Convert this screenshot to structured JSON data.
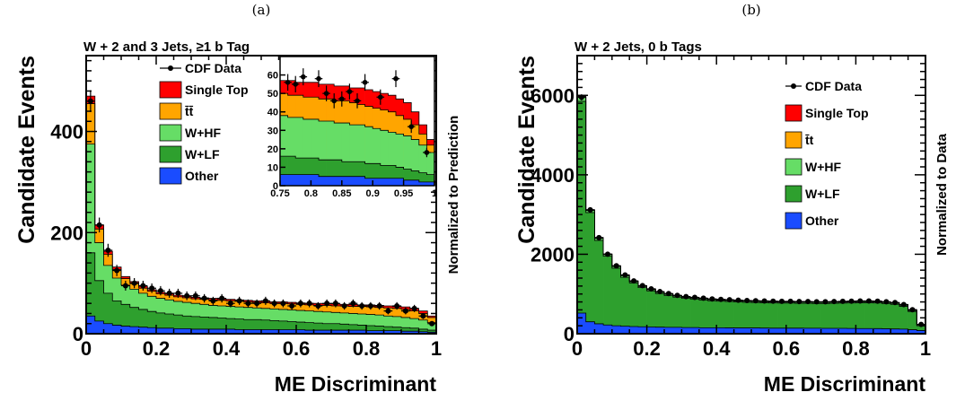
{
  "chart_data": [
    {
      "type": "bar",
      "panel_label": "(a)",
      "title": "W + 2 and 3 Jets, ≥1 b Tag",
      "xlabel": "ME Discriminant",
      "ylabel": "Candidate Events",
      "side_label": "Normalized to Prediction",
      "xlim": [
        0,
        1
      ],
      "ylim": [
        0,
        550
      ],
      "x_ticks": [
        "0",
        "0.2",
        "0.4",
        "0.6",
        "0.8",
        "1"
      ],
      "y_ticks": [
        "0",
        "200",
        "400"
      ],
      "y_tick_values": [
        0,
        200,
        400
      ],
      "legend_position": "top-center",
      "colors": {
        "Single Top": "#ff0000",
        "tt": "#ffa500",
        "W+HF": "#66dd66",
        "W+LF": "#2ea02e",
        "Other": "#1a4cff"
      },
      "legend": [
        {
          "name": "CDF Data",
          "kind": "data"
        },
        {
          "name": "Single Top",
          "kind": "box",
          "color": "#ff0000"
        },
        {
          "name": "t̄t̄",
          "kind": "box",
          "color": "#ffa500"
        },
        {
          "name": "W+HF",
          "kind": "box",
          "color": "#66dd66"
        },
        {
          "name": "W+LF",
          "kind": "box",
          "color": "#2ea02e"
        },
        {
          "name": "Other",
          "kind": "box",
          "color": "#1a4cff"
        }
      ],
      "bin_width": 0.025,
      "stack_cumulative": {
        "Other": [
          35,
          25,
          20,
          17,
          15,
          14,
          13,
          12,
          11,
          11,
          10,
          10,
          9,
          9,
          9,
          9,
          9,
          8,
          8,
          8,
          8,
          8,
          8,
          8,
          8,
          7,
          7,
          7,
          7,
          7,
          7,
          7,
          6,
          6,
          6,
          6,
          5,
          5,
          4,
          3
        ],
        "W+LF": [
          160,
          105,
          80,
          65,
          58,
          52,
          48,
          44,
          41,
          39,
          37,
          35,
          34,
          33,
          32,
          31,
          30,
          29,
          28,
          28,
          27,
          26,
          25,
          24,
          23,
          22,
          21,
          20,
          20,
          19,
          18,
          17,
          16,
          15,
          14,
          13,
          12,
          11,
          9,
          7
        ],
        "W+HF": [
          375,
          180,
          135,
          110,
          96,
          88,
          80,
          74,
          70,
          67,
          64,
          62,
          60,
          58,
          56,
          55,
          54,
          53,
          52,
          51,
          50,
          49,
          48,
          47,
          46,
          45,
          44,
          43,
          42,
          41,
          40,
          39,
          38,
          37,
          35,
          34,
          32,
          30,
          27,
          22
        ],
        "tt": [
          455,
          207,
          157,
          127,
          109,
          99,
          90,
          84,
          79,
          76,
          73,
          71,
          69,
          68,
          67,
          66,
          65,
          64,
          63,
          62,
          61,
          60,
          60,
          59,
          58,
          57,
          56,
          56,
          55,
          55,
          54,
          54,
          53,
          52,
          51,
          50,
          48,
          45,
          40,
          32
        ],
        "Single Top": [
          470,
          215,
          163,
          132,
          113,
          103,
          94,
          87,
          82,
          79,
          76,
          74,
          72,
          71,
          70,
          69,
          68,
          67,
          66,
          65,
          64,
          63,
          63,
          62,
          61,
          60,
          60,
          59,
          59,
          58,
          58,
          57,
          57,
          56,
          55,
          54,
          53,
          50,
          45,
          35
        ]
      },
      "data_points": {
        "x": [
          0.0125,
          0.0375,
          0.0625,
          0.0875,
          0.1125,
          0.1375,
          0.1625,
          0.1875,
          0.2125,
          0.2375,
          0.2625,
          0.2875,
          0.3125,
          0.3375,
          0.3625,
          0.3875,
          0.4125,
          0.4375,
          0.4625,
          0.4875,
          0.5125,
          0.5375,
          0.5625,
          0.5875,
          0.6125,
          0.6375,
          0.6625,
          0.6875,
          0.7125,
          0.7375,
          0.7625,
          0.7875,
          0.8125,
          0.8375,
          0.8625,
          0.8875,
          0.9125,
          0.9375,
          0.9625,
          0.9875
        ],
        "y": [
          460,
          215,
          165,
          125,
          95,
          100,
          95,
          90,
          85,
          80,
          80,
          75,
          75,
          70,
          65,
          70,
          60,
          65,
          60,
          60,
          65,
          60,
          60,
          55,
          60,
          60,
          55,
          60,
          60,
          55,
          60,
          55,
          55,
          55,
          45,
          55,
          45,
          50,
          35,
          20
        ]
      },
      "inset": {
        "xlim": [
          0.75,
          1
        ],
        "ylim": [
          0,
          70
        ],
        "x_ticks": [
          "0.75",
          "0.8",
          "0.85",
          "0.9",
          "0.95",
          "1"
        ],
        "y_ticks": [
          "0",
          "10",
          "20",
          "30",
          "40",
          "50",
          "60"
        ],
        "y_tick_values": [
          0,
          10,
          20,
          30,
          40,
          50,
          60
        ],
        "bin_width": 0.0125,
        "stack_cumulative": {
          "Other": [
            6,
            6,
            6,
            6,
            6,
            5,
            5,
            5,
            5,
            5,
            5,
            4,
            4,
            4,
            4,
            4,
            3,
            3,
            2,
            2
          ],
          "W+LF": [
            16,
            16,
            15,
            15,
            15,
            14,
            14,
            14,
            13,
            13,
            13,
            12,
            12,
            11,
            11,
            10,
            9,
            8,
            7,
            6
          ],
          "W+HF": [
            38,
            37,
            37,
            36,
            36,
            35,
            35,
            34,
            34,
            33,
            33,
            32,
            31,
            30,
            29,
            28,
            27,
            25,
            22,
            18
          ],
          "tt": [
            50,
            49,
            49,
            48,
            48,
            47,
            47,
            46,
            46,
            45,
            44,
            43,
            42,
            41,
            40,
            38,
            36,
            33,
            28,
            22
          ],
          "Single Top": [
            57,
            57,
            56,
            56,
            56,
            55,
            55,
            54,
            54,
            53,
            53,
            52,
            51,
            50,
            49,
            47,
            45,
            40,
            33,
            25
          ]
        },
        "data_points": {
          "x": [
            0.7625,
            0.775,
            0.7875,
            0.8125,
            0.825,
            0.8375,
            0.85,
            0.8625,
            0.875,
            0.8875,
            0.9125,
            0.9375,
            0.9625,
            0.9875
          ],
          "y": [
            56,
            55,
            59,
            58,
            50,
            46,
            47,
            51,
            46,
            56,
            48,
            58,
            32,
            18
          ]
        }
      }
    },
    {
      "type": "bar",
      "panel_label": "(b)",
      "title": "W + 2 Jets, 0 b Tags",
      "xlabel": "ME Discriminant",
      "ylabel": "Candidate Events",
      "side_label": "Normalized to Data",
      "xlim": [
        0,
        1
      ],
      "ylim": [
        0,
        7000
      ],
      "x_ticks": [
        "0",
        "0.2",
        "0.4",
        "0.6",
        "0.8",
        "1"
      ],
      "y_ticks": [
        "0",
        "2000",
        "4000",
        "6000"
      ],
      "y_tick_values": [
        0,
        2000,
        4000,
        6000
      ],
      "legend_position": "top-right",
      "colors": {
        "Single Top": "#ff0000",
        "tt": "#ffa500",
        "W+HF": "#66dd66",
        "W+LF": "#2ea02e",
        "Other": "#1a4cff"
      },
      "legend": [
        {
          "name": "CDF Data",
          "kind": "data"
        },
        {
          "name": "Single Top",
          "kind": "box",
          "color": "#ff0000"
        },
        {
          "name": "t̄t",
          "kind": "box",
          "color": "#ffa500"
        },
        {
          "name": "W+HF",
          "kind": "box",
          "color": "#66dd66"
        },
        {
          "name": "W+LF",
          "kind": "box",
          "color": "#2ea02e"
        },
        {
          "name": "Other",
          "kind": "box",
          "color": "#1a4cff"
        }
      ],
      "bin_width": 0.025,
      "stack_cumulative": {
        "Other": [
          520,
          300,
          250,
          220,
          200,
          190,
          180,
          175,
          170,
          165,
          160,
          160,
          155,
          155,
          150,
          150,
          150,
          148,
          145,
          145,
          145,
          142,
          140,
          140,
          140,
          140,
          138,
          138,
          135,
          135,
          135,
          132,
          130,
          130,
          128,
          125,
          120,
          115,
          100,
          80
        ],
        "W+LF": [
          5850,
          3050,
          2350,
          1950,
          1650,
          1420,
          1280,
          1160,
          1080,
          1010,
          960,
          920,
          890,
          870,
          850,
          830,
          820,
          810,
          800,
          790,
          785,
          780,
          775,
          770,
          770,
          765,
          765,
          760,
          760,
          765,
          770,
          775,
          780,
          780,
          775,
          760,
          740,
          690,
          560,
          200
        ],
        "W+HF": [
          5950,
          3100,
          2400,
          1990,
          1690,
          1460,
          1310,
          1190,
          1110,
          1040,
          990,
          945,
          915,
          895,
          875,
          855,
          845,
          835,
          825,
          815,
          810,
          805,
          800,
          795,
          795,
          790,
          790,
          785,
          785,
          790,
          795,
          800,
          805,
          805,
          800,
          785,
          765,
          715,
          585,
          220
        ],
        "tt": [
          5960,
          3110,
          2410,
          2000,
          1700,
          1470,
          1320,
          1200,
          1120,
          1050,
          1000,
          955,
          925,
          905,
          885,
          865,
          855,
          845,
          835,
          825,
          820,
          815,
          810,
          805,
          805,
          800,
          800,
          795,
          795,
          800,
          805,
          810,
          815,
          815,
          810,
          795,
          775,
          725,
          595,
          228
        ],
        "Single Top": [
          5980,
          3120,
          2420,
          2010,
          1710,
          1480,
          1330,
          1210,
          1130,
          1060,
          1010,
          965,
          935,
          915,
          895,
          875,
          865,
          855,
          845,
          835,
          830,
          825,
          820,
          815,
          815,
          810,
          810,
          805,
          805,
          810,
          815,
          820,
          825,
          825,
          820,
          805,
          785,
          735,
          605,
          235
        ]
      },
      "data_points": {
        "x": [
          0.0125,
          0.0375,
          0.0625,
          0.0875,
          0.1125,
          0.1375,
          0.1625,
          0.1875,
          0.2125,
          0.2375,
          0.2625,
          0.2875,
          0.3125,
          0.3375,
          0.3625,
          0.3875,
          0.4125,
          0.4375,
          0.4625,
          0.4875,
          0.5125,
          0.5375,
          0.5625,
          0.5875,
          0.6125,
          0.6375,
          0.6625,
          0.6875,
          0.7125,
          0.7375,
          0.7625,
          0.7875,
          0.8125,
          0.8375,
          0.8625,
          0.8875,
          0.9125,
          0.9375,
          0.9625,
          0.9875
        ],
        "y": [
          5950,
          3120,
          2420,
          2000,
          1710,
          1480,
          1330,
          1210,
          1130,
          1060,
          1010,
          965,
          935,
          915,
          895,
          875,
          865,
          855,
          845,
          835,
          830,
          825,
          820,
          815,
          815,
          810,
          810,
          805,
          805,
          810,
          815,
          820,
          825,
          825,
          820,
          805,
          785,
          735,
          605,
          235
        ]
      }
    }
  ]
}
